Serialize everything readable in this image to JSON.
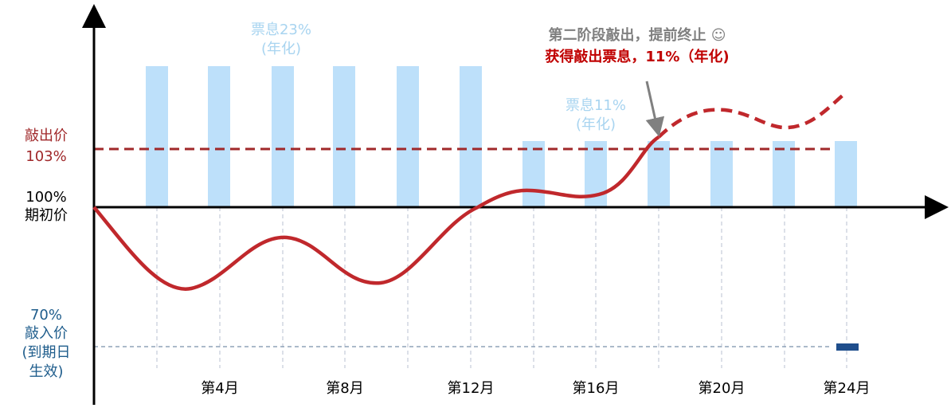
{
  "left_labels": {
    "knock_out": [
      "敲出价",
      "103%"
    ],
    "initial": [
      "100%",
      "期初价"
    ],
    "knock_in": [
      "70%",
      "敲入价",
      "(到期日",
      "生效)"
    ]
  },
  "coupon_stage1": [
    "票息23%",
    "(年化)"
  ],
  "coupon_stage2": [
    "票息11%",
    "(年化)"
  ],
  "annotation": [
    "第二阶段敲出，提前终止 ☺",
    "获得敲出票息，11%（年化)"
  ],
  "x_labels": [
    "第4月",
    "第8月",
    "第12月",
    "第16月",
    "第20月",
    "第24月"
  ]
}
